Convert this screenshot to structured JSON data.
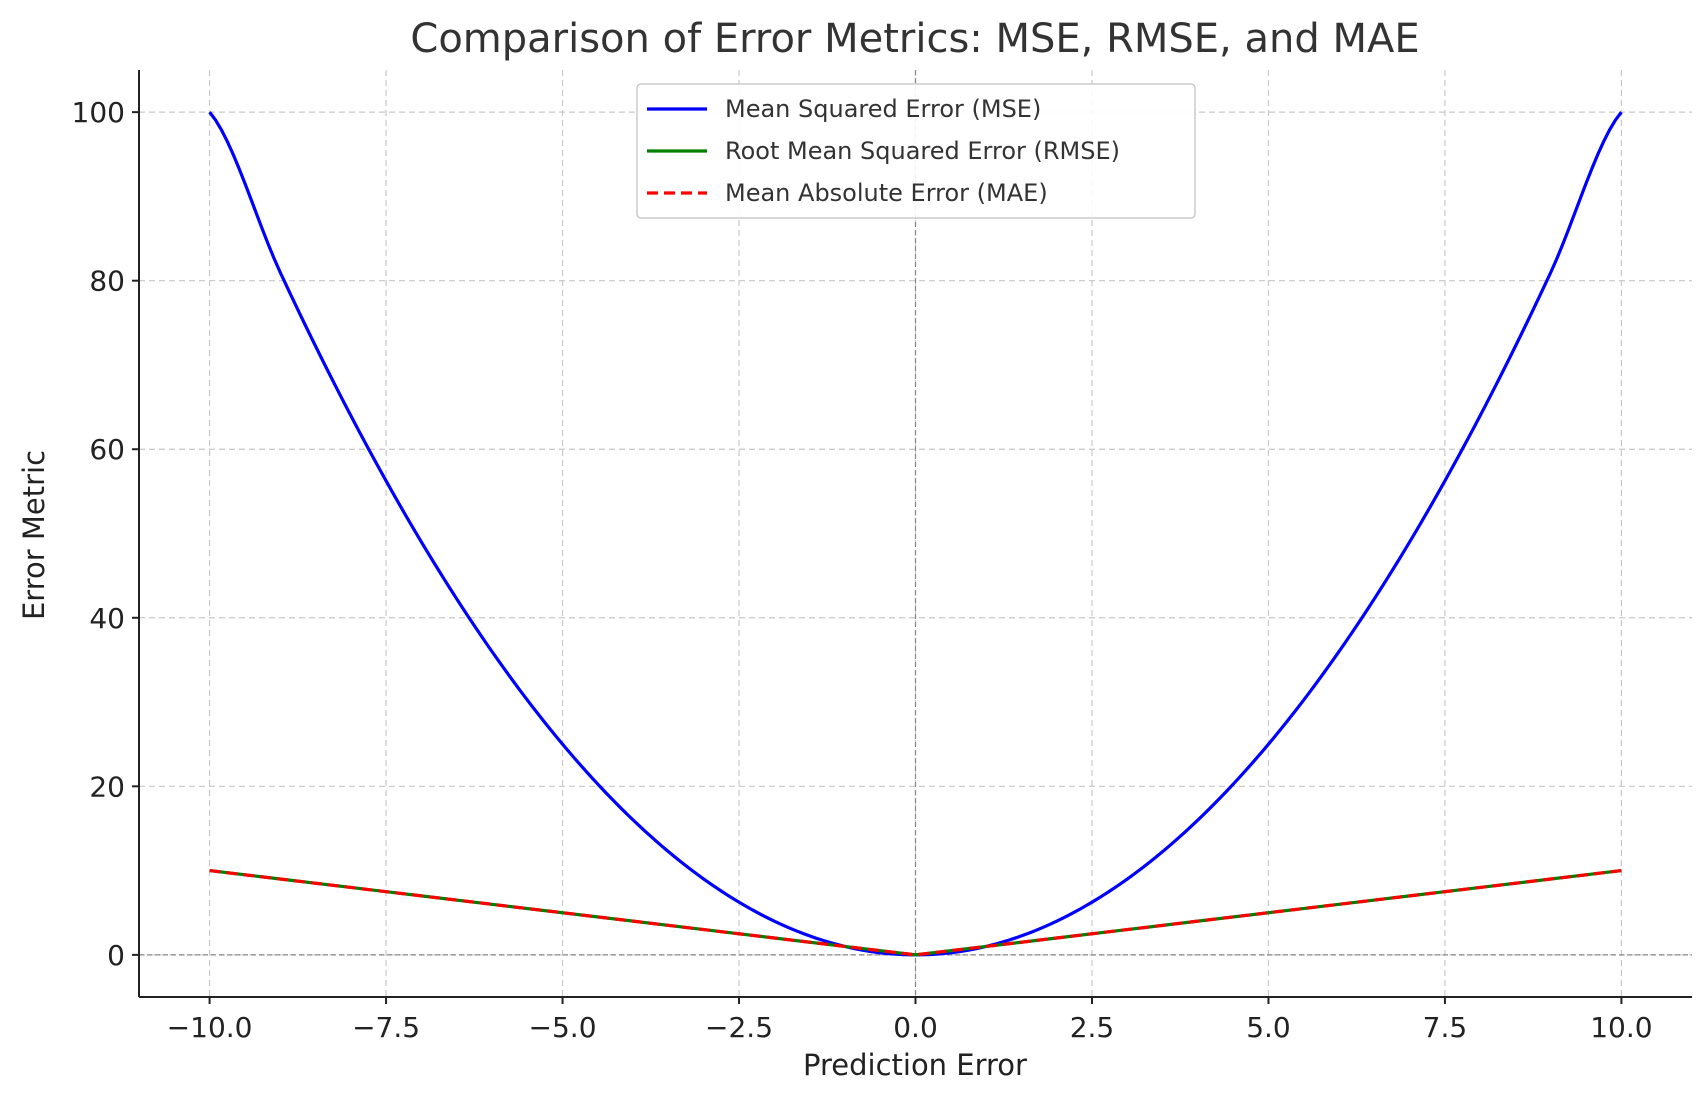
{
  "chart_data": {
    "type": "line",
    "title": "Comparison of Error Metrics: MSE, RMSE, and MAE",
    "xlabel": "Prediction Error",
    "ylabel": "Error Metric",
    "xlim": [
      -11,
      11
    ],
    "ylim": [
      -5,
      105
    ],
    "xticks": [
      -10.0,
      -7.5,
      -5.0,
      -2.5,
      0.0,
      2.5,
      5.0,
      7.5,
      10.0
    ],
    "xtick_labels": [
      "−10.0",
      "−7.5",
      "−5.0",
      "−2.5",
      "0.0",
      "2.5",
      "5.0",
      "7.5",
      "10.0"
    ],
    "yticks": [
      0,
      20,
      40,
      60,
      80,
      100
    ],
    "ytick_labels": [
      "0",
      "20",
      "40",
      "60",
      "80",
      "100"
    ],
    "grid": true,
    "zero_reference_lines": true,
    "legend_position": "upper center",
    "x": [
      -10,
      -9,
      -8,
      -7,
      -6,
      -5,
      -4,
      -3,
      -2,
      -1,
      0,
      1,
      2,
      3,
      4,
      5,
      6,
      7,
      8,
      9,
      10
    ],
    "series": [
      {
        "name": "Mean Squared Error (MSE)",
        "color": "#0000ff",
        "style": "solid",
        "values": [
          100,
          81,
          64,
          49,
          36,
          25,
          16,
          9,
          4,
          1,
          0,
          1,
          4,
          9,
          16,
          25,
          36,
          49,
          64,
          81,
          100
        ]
      },
      {
        "name": "Root Mean Squared Error (RMSE)",
        "color": "#008000",
        "style": "solid",
        "values": [
          10,
          9,
          8,
          7,
          6,
          5,
          4,
          3,
          2,
          1,
          0,
          1,
          2,
          3,
          4,
          5,
          6,
          7,
          8,
          9,
          10
        ]
      },
      {
        "name": "Mean Absolute Error (MAE)",
        "color": "#ff0000",
        "style": "dashed",
        "values": [
          10,
          9,
          8,
          7,
          6,
          5,
          4,
          3,
          2,
          1,
          0,
          1,
          2,
          3,
          4,
          5,
          6,
          7,
          8,
          9,
          10
        ]
      }
    ]
  }
}
